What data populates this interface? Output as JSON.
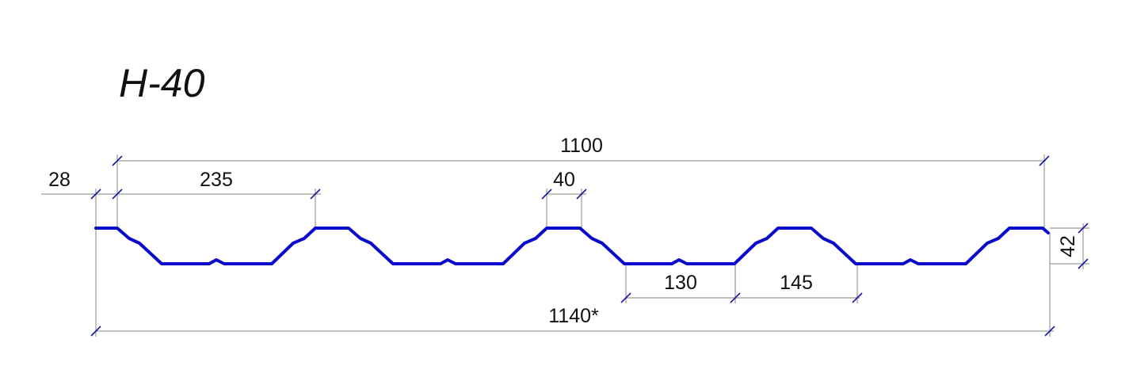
{
  "title": "H-40",
  "profile_color": "#0a0acc",
  "dimensions": {
    "total_width": "1100",
    "overall_width": "1140*",
    "edge": "28",
    "pitch": "235",
    "rib_top": "40",
    "valley": "130",
    "rib_base": "145",
    "height": "42"
  }
}
